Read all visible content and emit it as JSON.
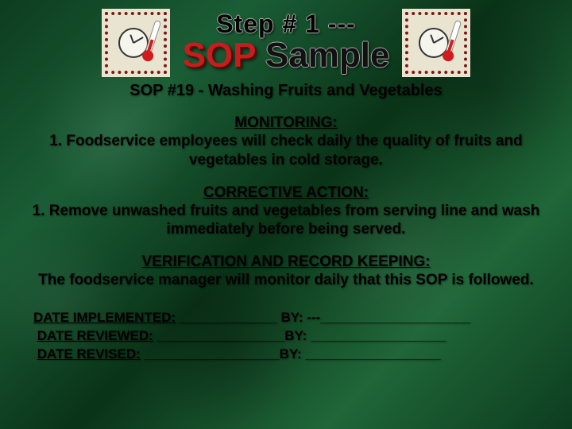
{
  "header": {
    "step_line": "Step # 1 ---",
    "sop_word": "SOP",
    "sample_word": "Sample"
  },
  "subtitle": "SOP #19 - Washing Fruits and Vegetables",
  "sections": {
    "monitoring": {
      "heading": "MONITORING:",
      "item": "1. Foodservice employees will check daily the quality of fruits and vegetables in cold storage."
    },
    "corrective": {
      "heading": "CORRECTIVE ACTION:",
      "item": "1. Remove unwashed fruits and vegetables from serving line and wash immediately before being served."
    },
    "verification": {
      "heading": "VERIFICATION AND RECORD KEEPING:",
      "item": "The foodservice manager will monitor daily that this SOP is followed."
    }
  },
  "dates": {
    "implemented_label": "DATE IMPLEMENTED:",
    "implemented_line": " _____________ BY: ---____________________",
    "reviewed_label": "DATE REVIEWED:",
    "reviewed_line": " _________________BY: __________________",
    "revised_label": "DATE REVISED:",
    "revised_line": " __________________BY: __________________"
  },
  "colors": {
    "accent_red": "#c41e1e",
    "stamp_bg": "#e8e4d0",
    "stamp_border": "#7a1818",
    "bg_green_dark": "#0d3d1f",
    "bg_green_light": "#1f6638"
  }
}
